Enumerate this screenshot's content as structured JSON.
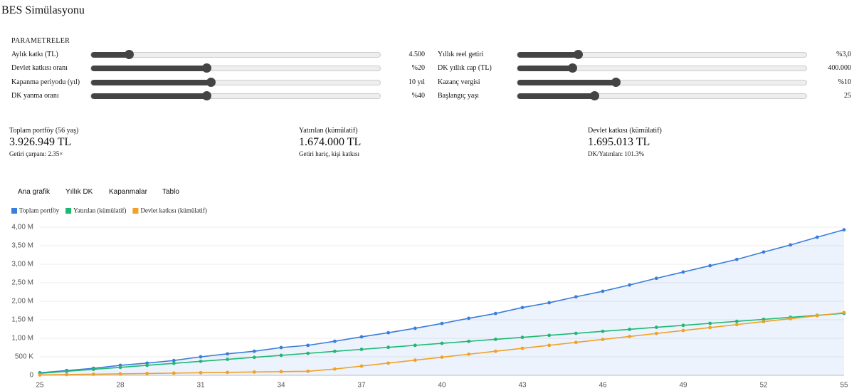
{
  "header": {
    "title": "BES Simülasyonu"
  },
  "parameters": {
    "title": "PARAMETRELER",
    "items": [
      {
        "label": "Aylık katkı (TL)",
        "value": "4.500"
      },
      {
        "label": "Yıllık reel getiri",
        "value": "%3,0"
      },
      {
        "label": "Devlet katkısı oranı",
        "value": "%20"
      },
      {
        "label": "DK yıllık cap (TL)",
        "value": "400.000"
      },
      {
        "label": "Kapanma periyodu (yıl)",
        "value": "10 yıl"
      },
      {
        "label": "Kazanç vergisi",
        "value": "%10"
      },
      {
        "label": "DK yanma oranı",
        "value": "%40"
      },
      {
        "label": "Başlangıç yaşı",
        "value": "25"
      }
    ]
  },
  "cards": [
    {
      "label": "Toplam portföy (56 yaş)",
      "value": "3.926.949 TL",
      "note": "Getiri çarpanı: 2.35×"
    },
    {
      "label": "Yatırılan (kümülatif)",
      "value": "1.674.000 TL",
      "note": "Getiri hariç, kişi katkısı"
    },
    {
      "label": "Devlet katkısı (kümülatif)",
      "value": "1.695.013 TL",
      "note": "DK/Yatırılan: 101.3%"
    }
  ],
  "tabs": [
    "Ana grafik",
    "Yıllık DK",
    "Kapanmalar",
    "Tablo"
  ],
  "chart_data": {
    "type": "line",
    "x": [
      25,
      26,
      27,
      28,
      29,
      30,
      31,
      32,
      33,
      34,
      35,
      36,
      37,
      38,
      39,
      40,
      41,
      42,
      43,
      44,
      45,
      46,
      47,
      48,
      49,
      50,
      51,
      52,
      53,
      54,
      55
    ],
    "xlim": [
      25,
      55
    ],
    "xticks": [
      25,
      28,
      31,
      34,
      37,
      40,
      43,
      46,
      49,
      52,
      55
    ],
    "ylim": [
      0,
      4
    ],
    "yticks": [
      0,
      {
        "value": 0.5,
        "label": "500 K"
      },
      {
        "value": 1,
        "label": "1,00 M"
      },
      {
        "value": 1.5,
        "label": "1,50 M"
      },
      {
        "value": 2,
        "label": "2,00 M"
      },
      {
        "value": 2.5,
        "label": "2,50 M"
      },
      {
        "value": 3,
        "label": "3,00 M"
      },
      {
        "value": 3.5,
        "label": "3,50 M"
      },
      {
        "value": 4,
        "label": "4,00 M"
      }
    ],
    "grid": true,
    "legend": "top-left",
    "series": [
      {
        "name": "Toplam portföy",
        "color": "#3b7ddd",
        "fill": true,
        "values": [
          0.07,
          0.13,
          0.19,
          0.27,
          0.33,
          0.4,
          0.5,
          0.58,
          0.65,
          0.75,
          0.81,
          0.92,
          1.04,
          1.15,
          1.27,
          1.4,
          1.54,
          1.67,
          1.83,
          1.96,
          2.12,
          2.27,
          2.44,
          2.62,
          2.79,
          2.96,
          3.13,
          3.33,
          3.52,
          3.73,
          3.93
        ]
      },
      {
        "name": "Yatırılan (kümülatif)",
        "color": "#1fb873",
        "values": [
          0.054,
          0.108,
          0.162,
          0.216,
          0.27,
          0.324,
          0.378,
          0.432,
          0.486,
          0.54,
          0.594,
          0.648,
          0.702,
          0.756,
          0.81,
          0.864,
          0.918,
          0.972,
          1.026,
          1.08,
          1.134,
          1.188,
          1.242,
          1.296,
          1.35,
          1.404,
          1.458,
          1.512,
          1.566,
          1.62,
          1.674
        ]
      },
      {
        "name": "Devlet katkısı (kümülatif)",
        "color": "#f0a126",
        "values": [
          0.01,
          0.02,
          0.03,
          0.04,
          0.05,
          0.06,
          0.07,
          0.08,
          0.09,
          0.1,
          0.11,
          0.17,
          0.25,
          0.33,
          0.41,
          0.49,
          0.57,
          0.65,
          0.73,
          0.81,
          0.89,
          0.97,
          1.05,
          1.13,
          1.21,
          1.29,
          1.37,
          1.45,
          1.53,
          1.61,
          1.695
        ]
      }
    ]
  }
}
